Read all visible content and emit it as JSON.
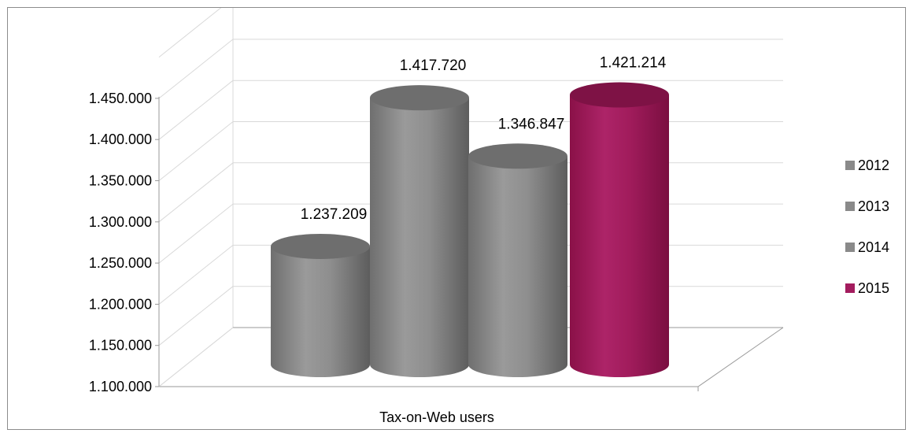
{
  "chart_data": {
    "type": "bar",
    "categories": [
      "Tax-on-Web users"
    ],
    "series": [
      {
        "name": "2012",
        "values": [
          1237209
        ],
        "color": "#8a8a8a",
        "label": "1.237.209"
      },
      {
        "name": "2013",
        "values": [
          1417720
        ],
        "color": "#8a8a8a",
        "label": "1.417.720"
      },
      {
        "name": "2014",
        "values": [
          1346847
        ],
        "color": "#8a8a8a",
        "label": "1.346.847"
      },
      {
        "name": "2015",
        "values": [
          1421214
        ],
        "color": "#a31c5e",
        "label": "1.421.214"
      }
    ],
    "y_ticks": [
      "1.100.000",
      "1.150.000",
      "1.200.000",
      "1.250.000",
      "1.300.000",
      "1.350.000",
      "1.400.000",
      "1.450.000"
    ],
    "ylim": [
      1100000,
      1450000
    ],
    "y_tick_step": 50000,
    "grid": true,
    "legend_position": "right",
    "style": "3d-cylinder"
  }
}
